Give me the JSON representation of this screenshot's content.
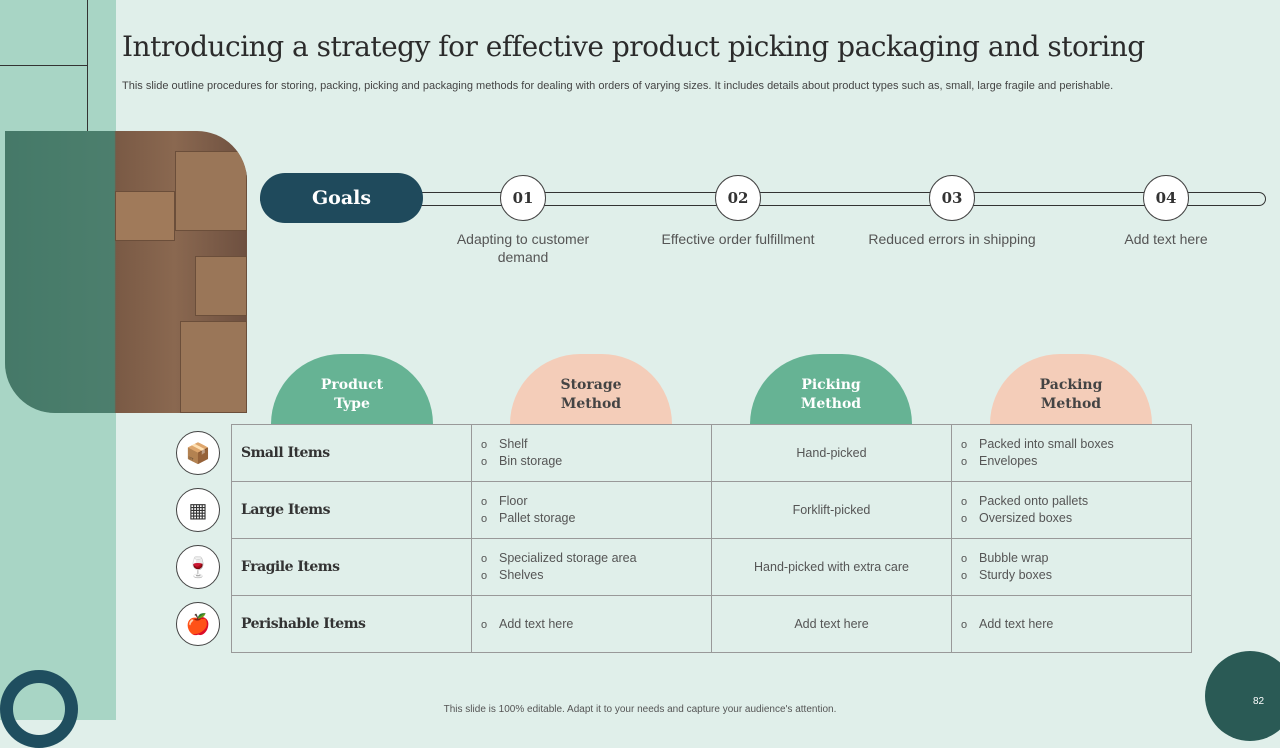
{
  "title": "Introducing a strategy for effective product picking packaging and storing",
  "subtitle": "This slide outline procedures for storing, packing, picking and packaging methods for dealing with orders of varying sizes. It includes details about product types such as, small, large fragile and perishable.",
  "goals": {
    "label": "Goals",
    "items": [
      {
        "num": "01",
        "text": "Adapting to customer demand"
      },
      {
        "num": "02",
        "text": "Effective order fulfillment"
      },
      {
        "num": "03",
        "text": "Reduced errors in shipping"
      },
      {
        "num": "04",
        "text": "Add text here"
      }
    ]
  },
  "headers": [
    "Product Type",
    "Storage Method",
    "Picking Method",
    "Packing Method"
  ],
  "rows": [
    {
      "icon": "package-check-icon",
      "type": "Small Items",
      "storage": [
        "Shelf",
        "Bin storage"
      ],
      "picking": "Hand-picked",
      "packing": [
        "Packed into small boxes",
        "Envelopes"
      ]
    },
    {
      "icon": "pallet-boxes-icon",
      "type": "Large Items",
      "storage": [
        "Floor",
        "Pallet storage"
      ],
      "picking": "Forklift-picked",
      "packing": [
        "Packed onto pallets",
        "Oversized boxes"
      ]
    },
    {
      "icon": "wine-glass-box-icon",
      "type": "Fragile Items",
      "storage": [
        "Specialized storage area",
        "Shelves"
      ],
      "picking": "Hand-picked with extra care",
      "packing": [
        "Bubble wrap",
        "Sturdy boxes"
      ]
    },
    {
      "icon": "fruit-clock-icon",
      "type": "Perishable Items",
      "storage": [
        "Add text here"
      ],
      "picking": "Add text here",
      "packing": [
        "Add text here"
      ]
    }
  ],
  "footer": "This slide is 100% editable. Adapt it to your needs and capture your audience's attention.",
  "page_number": "82",
  "colors": {
    "dark_teal": "#1f4a5c",
    "green": "#66b394",
    "peach": "#f4cdb9",
    "background": "#e0efea"
  }
}
